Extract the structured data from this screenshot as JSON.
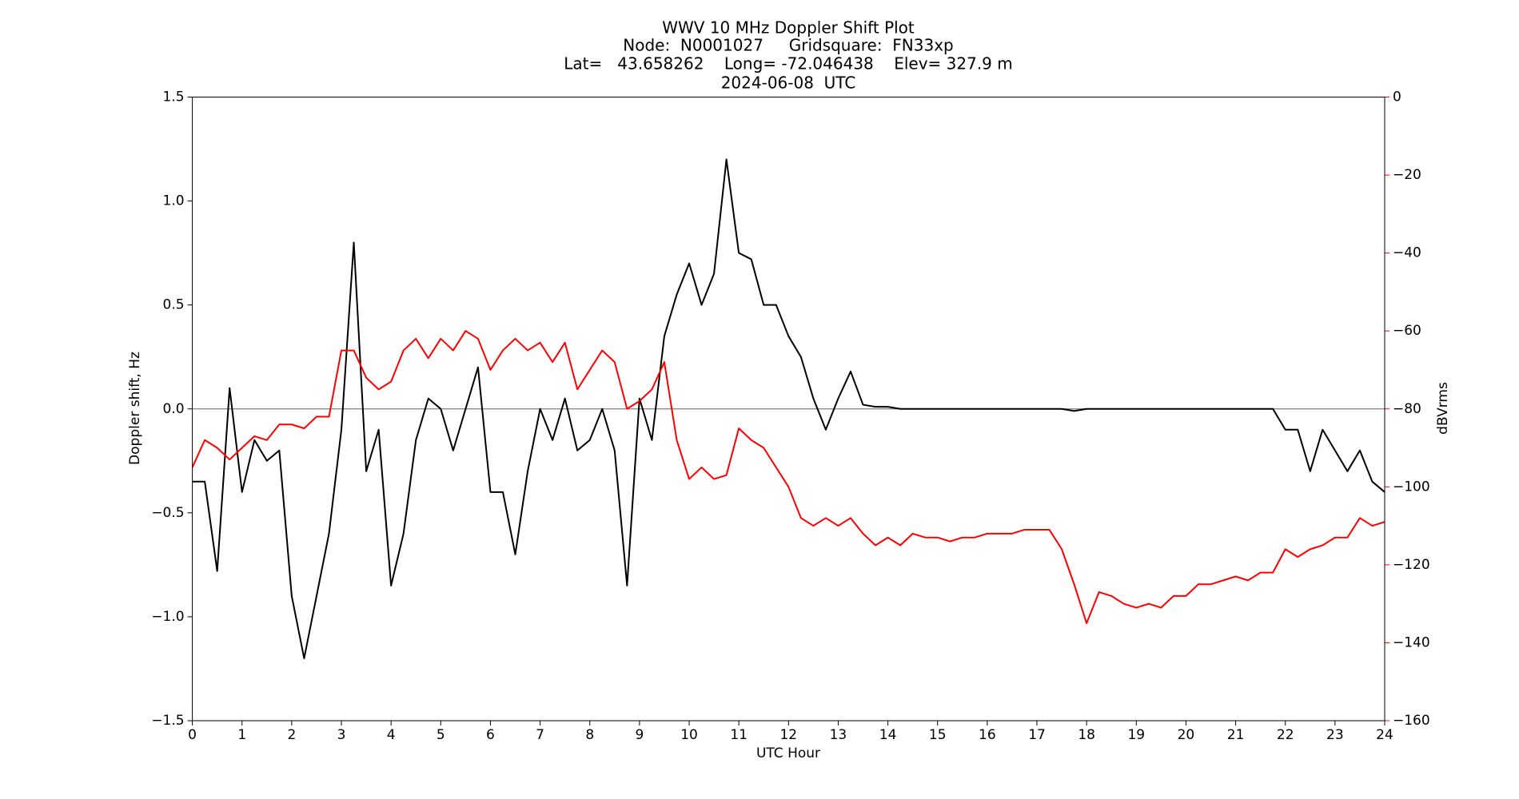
{
  "chart_data": {
    "type": "line",
    "title": "WWV 10 MHz Doppler Shift Plot",
    "subtitle_lines": [
      "Node:  N0001027     Gridsquare:  FN33xp",
      "Lat=   43.658262    Long= -72.046438    Elev= 327.9 m",
      "2024-06-08  UTC"
    ],
    "xlabel": "UTC Hour",
    "ylabel": "Doppler shift, Hz",
    "y2label": "dBVrms",
    "y2color": "#ff0000",
    "x": [
      0,
      0.25,
      0.5,
      0.75,
      1,
      1.25,
      1.5,
      1.75,
      2,
      2.25,
      2.5,
      2.75,
      3,
      3.25,
      3.5,
      3.75,
      4,
      4.25,
      4.5,
      4.75,
      5,
      5.25,
      5.5,
      5.75,
      6,
      6.25,
      6.5,
      6.75,
      7,
      7.25,
      7.5,
      7.75,
      8,
      8.25,
      8.5,
      8.75,
      9,
      9.25,
      9.5,
      9.75,
      10,
      10.25,
      10.5,
      10.75,
      11,
      11.25,
      11.5,
      11.75,
      12,
      12.25,
      12.5,
      12.75,
      13,
      13.25,
      13.5,
      13.75,
      14,
      14.25,
      14.5,
      14.75,
      15,
      15.25,
      15.5,
      15.75,
      16,
      16.25,
      16.5,
      16.75,
      17,
      17.25,
      17.5,
      17.75,
      18,
      18.25,
      18.5,
      18.75,
      19,
      19.25,
      19.5,
      19.75,
      20,
      20.25,
      20.5,
      20.75,
      21,
      21.25,
      21.5,
      21.75,
      22,
      22.25,
      22.5,
      22.75,
      23,
      23.25,
      23.5,
      23.75,
      24
    ],
    "series": [
      {
        "name": "Doppler shift",
        "color": "#000000",
        "axis": "y",
        "values": [
          -0.35,
          -0.35,
          -0.78,
          0.1,
          -0.4,
          -0.15,
          -0.25,
          -0.2,
          -0.9,
          -1.2,
          -0.9,
          -0.6,
          -0.1,
          0.8,
          -0.3,
          -0.1,
          -0.85,
          -0.6,
          -0.15,
          0.05,
          0,
          -0.2,
          0,
          0.2,
          -0.4,
          -0.4,
          -0.7,
          -0.3,
          0,
          -0.15,
          0.05,
          -0.2,
          -0.15,
          0,
          -0.2,
          -0.85,
          0.05,
          -0.15,
          0.35,
          0.55,
          0.7,
          0.5,
          0.65,
          1.2,
          0.75,
          0.72,
          0.5,
          0.5,
          0.35,
          0.25,
          0.05,
          -0.1,
          0.05,
          0.18,
          0.02,
          0.01,
          0.01,
          0,
          0,
          0,
          0,
          0,
          0,
          0,
          0,
          0,
          0,
          0,
          0,
          0,
          0,
          -0.01,
          0,
          0,
          0,
          0,
          0,
          0,
          0,
          0,
          0,
          0,
          0,
          0,
          0,
          0,
          0,
          0,
          -0.1,
          -0.1,
          -0.3,
          -0.1,
          -0.2,
          -0.3,
          -0.2,
          -0.35,
          -0.4
        ]
      },
      {
        "name": "dBVrms",
        "color": "#ff0000",
        "axis": "y2",
        "values": [
          -95,
          -88,
          -90,
          -93,
          -90,
          -87,
          -88,
          -84,
          -84,
          -85,
          -82,
          -82,
          -65,
          -65,
          -72,
          -75,
          -73,
          -65,
          -62,
          -67,
          -62,
          -65,
          -60,
          -62,
          -70,
          -65,
          -62,
          -65,
          -63,
          -68,
          -63,
          -75,
          -70,
          -65,
          -68,
          -80,
          -78,
          -75,
          -68,
          -88,
          -98,
          -95,
          -98,
          -97,
          -85,
          -88,
          -90,
          -95,
          -100,
          -108,
          -110,
          -108,
          -110,
          -108,
          -112,
          -115,
          -113,
          -115,
          -112,
          -113,
          -113,
          -114,
          -113,
          -113,
          -112,
          -112,
          -112,
          -111,
          -111,
          -111,
          -116,
          -125,
          -135,
          -127,
          -128,
          -130,
          -131,
          -130,
          -131,
          -128,
          -128,
          -125,
          -125,
          -124,
          -123,
          -124,
          -122,
          -122,
          -116,
          -118,
          -116,
          -115,
          -113,
          -113,
          -108,
          -110,
          -109
        ]
      }
    ],
    "xlim": [
      0,
      24
    ],
    "xticks": [
      0,
      1,
      2,
      3,
      4,
      5,
      6,
      7,
      8,
      9,
      10,
      11,
      12,
      13,
      14,
      15,
      16,
      17,
      18,
      19,
      20,
      21,
      22,
      23,
      24
    ],
    "ylim": [
      -1.5,
      1.5
    ],
    "yticks": [
      {
        "value": -1.5,
        "label": "−1.5"
      },
      {
        "value": -1,
        "label": "−1.0"
      },
      {
        "value": -0.5,
        "label": "−0.5"
      },
      {
        "value": 0,
        "label": "0.0"
      },
      0.5,
      {
        "value": 1,
        "label": "1.0"
      },
      1.5
    ],
    "y2lim": [
      -160,
      0
    ],
    "y2ticks": [
      {
        "value": -160,
        "label": "−160"
      },
      {
        "value": -140,
        "label": "−140"
      },
      {
        "value": -120,
        "label": "−120"
      },
      {
        "value": -100,
        "label": "−100"
      },
      {
        "value": -80,
        "label": "−80"
      },
      {
        "value": -60,
        "label": "−60"
      },
      {
        "value": -40,
        "label": "−40"
      },
      {
        "value": -20,
        "label": "−20"
      },
      0
    ],
    "reference_line": {
      "value": 0,
      "color": "#808080"
    },
    "grid": false
  }
}
